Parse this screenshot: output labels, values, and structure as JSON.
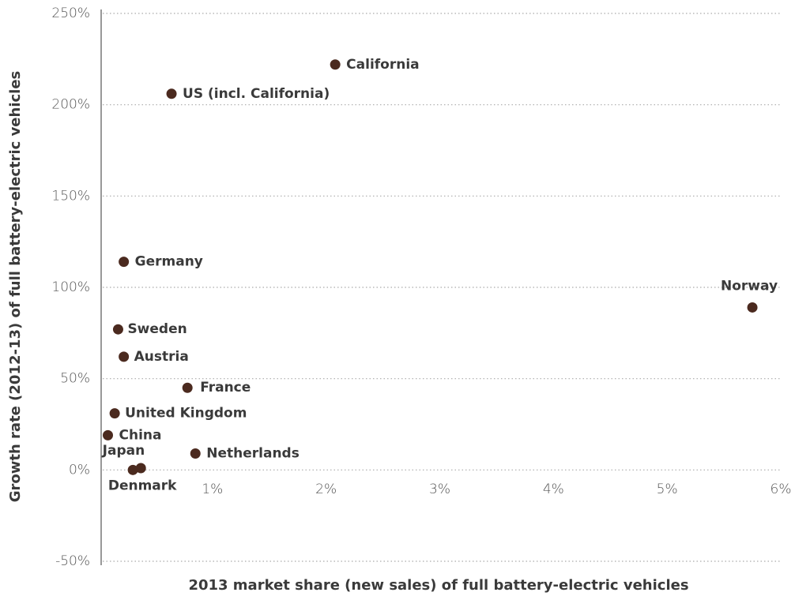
{
  "chart_data": {
    "type": "scatter",
    "x_label": "2013 market share (new sales) of full battery-electric vehicles",
    "y_label": "Growth rate (2012-13) of full battery-electric vehicles",
    "labels": [
      "California",
      "US (incl. California)",
      "Germany",
      "Norway",
      "Sweden",
      "Austria",
      "France",
      "United Kingdom",
      "China",
      "Netherlands",
      "Japan",
      "Denmark"
    ],
    "x": [
      2.08,
      0.64,
      0.22,
      5.75,
      0.17,
      0.22,
      0.78,
      0.14,
      0.08,
      0.85,
      0.37,
      0.3
    ],
    "y": [
      222,
      206,
      114,
      89,
      77,
      62,
      45,
      31,
      19,
      9,
      1,
      0
    ],
    "color": "#4b2a1f",
    "xlim": [
      0,
      6
    ],
    "xticks": [
      {
        "value": 1,
        "label": "1%"
      },
      {
        "value": 2,
        "label": "2%"
      },
      {
        "value": 3,
        "label": "3%"
      },
      {
        "value": 4,
        "label": "4%"
      },
      {
        "value": 5,
        "label": "5%"
      },
      {
        "value": 6,
        "label": "6%"
      }
    ],
    "ylim": [
      -50,
      250
    ],
    "yticks": [
      {
        "value": -50,
        "label": "-50%"
      },
      {
        "value": 0,
        "label": "0%"
      },
      {
        "value": 50,
        "label": "50%"
      },
      {
        "value": 100,
        "label": "100%"
      },
      {
        "value": 150,
        "label": "150%"
      },
      {
        "value": 200,
        "label": "200%"
      },
      {
        "value": 250,
        "label": "250%"
      }
    ],
    "grid": true
  }
}
